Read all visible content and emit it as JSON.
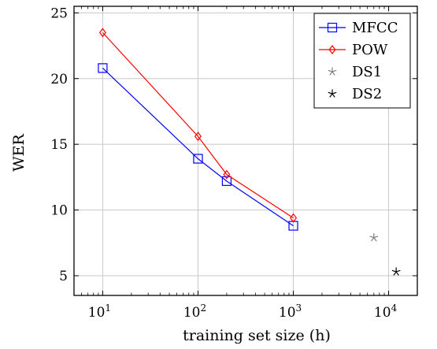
{
  "chart_data": {
    "type": "line",
    "title": "",
    "xlabel": "training set size (h)",
    "ylabel": "WER",
    "xscale": "log",
    "xlim": [
      5,
      20000
    ],
    "ylim": [
      3.5,
      25.5
    ],
    "grid": true,
    "legend_position": "top-right",
    "xticks": [
      {
        "value": 10,
        "base": "10",
        "exp": "1"
      },
      {
        "value": 100,
        "base": "10",
        "exp": "2"
      },
      {
        "value": 1000,
        "base": "10",
        "exp": "3"
      },
      {
        "value": 10000,
        "base": "10",
        "exp": "4"
      }
    ],
    "yticks": [
      {
        "value": 5,
        "label": "5"
      },
      {
        "value": 10,
        "label": "10"
      },
      {
        "value": 15,
        "label": "15"
      },
      {
        "value": 20,
        "label": "20"
      },
      {
        "value": 25,
        "label": "25"
      }
    ],
    "series": [
      {
        "name": "MFCC",
        "color": "#0000ff",
        "marker": "square",
        "line": true,
        "points": [
          {
            "x": 10,
            "y": 20.8
          },
          {
            "x": 100,
            "y": 13.9
          },
          {
            "x": 200,
            "y": 12.2
          },
          {
            "x": 1000,
            "y": 8.8
          }
        ]
      },
      {
        "name": "POW",
        "color": "#ff0000",
        "marker": "diamond",
        "line": true,
        "points": [
          {
            "x": 10,
            "y": 23.5
          },
          {
            "x": 100,
            "y": 15.6
          },
          {
            "x": 200,
            "y": 12.7
          },
          {
            "x": 1000,
            "y": 9.4
          }
        ]
      },
      {
        "name": "DS1",
        "color": "#808080",
        "marker": "star",
        "line": false,
        "points": [
          {
            "x": 7000,
            "y": 7.9
          }
        ]
      },
      {
        "name": "DS2",
        "color": "#000000",
        "marker": "star",
        "line": false,
        "points": [
          {
            "x": 12000,
            "y": 5.3
          }
        ]
      }
    ]
  }
}
